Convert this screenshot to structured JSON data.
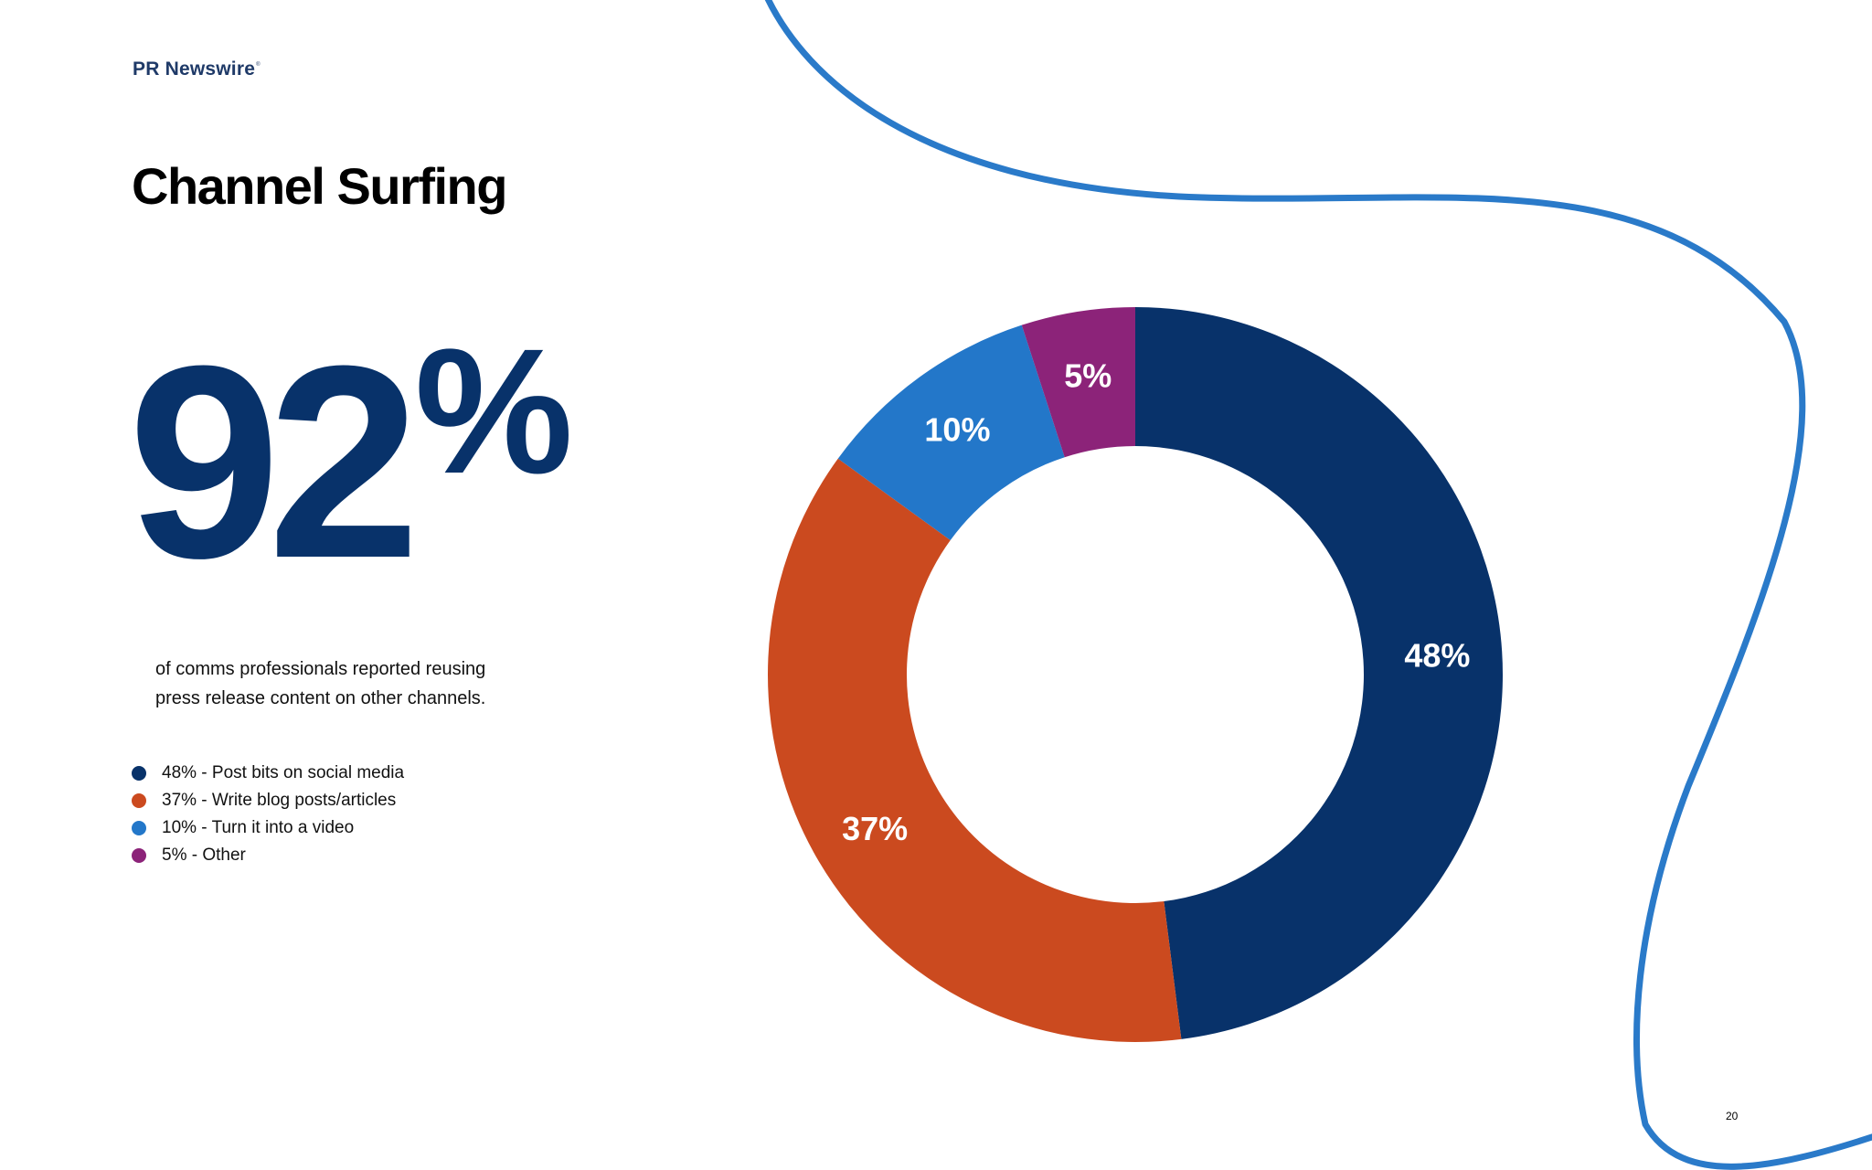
{
  "brand": {
    "name": "PR Newswire",
    "mark": "®"
  },
  "title": "Channel Surfing",
  "highlight": {
    "number": "92",
    "unit": "%",
    "caption_line1": "of comms professionals reported reusing",
    "caption_line2": "press release content on other channels.",
    "color": "#08326a"
  },
  "legend": [
    {
      "label": "48% - Post bits on social media",
      "color": "#08326a"
    },
    {
      "label": "37% - Write blog posts/articles",
      "color": "#cb4a1f"
    },
    {
      "label": "10% - Turn it into a video",
      "color": "#2377c9"
    },
    {
      "label": "5% - Other",
      "color": "#8c2379"
    }
  ],
  "chart_data": {
    "type": "pie",
    "variant": "donut",
    "title": "",
    "categories": [
      "Post bits on social media",
      "Write blog posts/articles",
      "Turn it into a video",
      "Other"
    ],
    "values": [
      48,
      37,
      10,
      5
    ],
    "data_labels": [
      "48%",
      "37%",
      "10%",
      "5%"
    ],
    "colors": [
      "#08326a",
      "#cb4a1f",
      "#2377c9",
      "#8c2379"
    ],
    "start_angle": "12 o'clock",
    "direction": "clockwise",
    "legend_position": "left",
    "label_color": "#ffffff"
  },
  "decoration": {
    "curve_color": "#2a7ac9"
  },
  "page_number": "20"
}
